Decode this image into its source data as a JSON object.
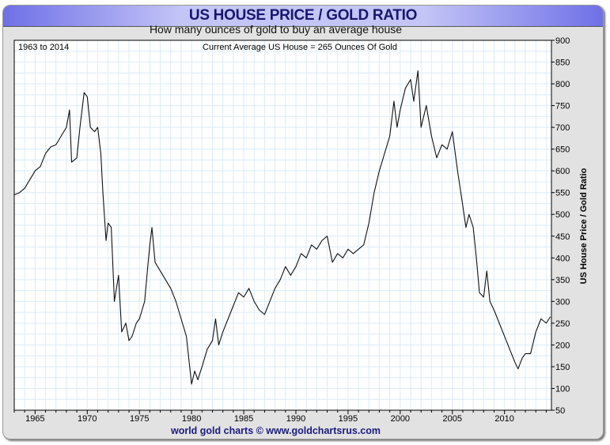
{
  "chart_data": {
    "type": "line",
    "title": "US HOUSE PRICE / GOLD RATIO",
    "subtitle": "How many ounces of gold to buy an average house",
    "annotations": [
      "1963 to 2014",
      "Current Average US House = 265 Ounces Of Gold"
    ],
    "ylabel": "US House Price / Gold Ratio",
    "xlabel": "",
    "footer": "world gold charts © www.goldchartsrus.com",
    "xlim": [
      1963,
      2014.5
    ],
    "ylim": [
      50,
      900
    ],
    "y_axis_side": "right",
    "grid": true,
    "x_ticks": [
      1965,
      1970,
      1975,
      1980,
      1985,
      1990,
      1995,
      2000,
      2005,
      2010
    ],
    "y_ticks": [
      50,
      100,
      150,
      200,
      250,
      300,
      350,
      400,
      450,
      500,
      550,
      600,
      650,
      700,
      750,
      800,
      850,
      900
    ],
    "line_color": "#111111",
    "grid_color": "#dcecf8",
    "series": [
      {
        "x": [
          1963,
          1963.5,
          1964,
          1964.5,
          1965,
          1965.5,
          1966,
          1966.5,
          1967,
          1967.5,
          1968,
          1968.3,
          1968.5,
          1969,
          1969.3,
          1969.7,
          1970,
          1970.3,
          1970.7,
          1971,
          1971.3,
          1971.5,
          1971.8,
          1972,
          1972.3,
          1972.6,
          1973,
          1973.3,
          1973.7,
          1974,
          1974.3,
          1974.7,
          1975,
          1975.5,
          1975.8,
          1976,
          1976.2,
          1976.5,
          1977,
          1977.5,
          1978,
          1978.5,
          1979,
          1979.5,
          1980,
          1980.3,
          1980.6,
          1981,
          1981.5,
          1982,
          1982.3,
          1982.6,
          1983,
          1983.5,
          1984,
          1984.5,
          1985,
          1985.5,
          1986,
          1986.5,
          1987,
          1987.5,
          1988,
          1988.5,
          1989,
          1989.5,
          1990,
          1990.5,
          1991,
          1991.5,
          1992,
          1992.5,
          1993,
          1993.5,
          1994,
          1994.5,
          1995,
          1995.5,
          1996,
          1996.5,
          1997,
          1997.5,
          1998,
          1998.5,
          1999,
          1999.4,
          1999.7,
          2000,
          2000.5,
          2001,
          2001.3,
          2001.7,
          2002,
          2002.5,
          2003,
          2003.5,
          2004,
          2004.5,
          2005,
          2005.5,
          2006,
          2006.3,
          2006.6,
          2007,
          2007.3,
          2007.6,
          2008,
          2008.3,
          2008.6,
          2009,
          2009.5,
          2010,
          2010.5,
          2011,
          2011.3,
          2011.7,
          2012,
          2012.5,
          2013,
          2013.5,
          2014,
          2014.4
        ],
        "values": [
          545,
          550,
          560,
          580,
          600,
          610,
          640,
          655,
          660,
          680,
          700,
          740,
          620,
          630,
          700,
          780,
          770,
          700,
          690,
          700,
          640,
          550,
          440,
          480,
          470,
          300,
          360,
          230,
          250,
          210,
          220,
          250,
          260,
          300,
          380,
          430,
          470,
          390,
          370,
          350,
          330,
          300,
          260,
          220,
          110,
          140,
          120,
          150,
          190,
          210,
          260,
          200,
          230,
          260,
          290,
          320,
          310,
          330,
          300,
          280,
          270,
          300,
          330,
          350,
          380,
          360,
          380,
          410,
          400,
          430,
          420,
          440,
          450,
          390,
          410,
          400,
          420,
          410,
          420,
          430,
          480,
          550,
          600,
          640,
          680,
          760,
          700,
          740,
          790,
          810,
          760,
          830,
          700,
          750,
          680,
          630,
          660,
          650,
          690,
          600,
          520,
          470,
          500,
          470,
          400,
          320,
          310,
          370,
          300,
          280,
          250,
          220,
          190,
          160,
          145,
          170,
          180,
          180,
          230,
          260,
          250,
          265
        ]
      }
    ]
  }
}
